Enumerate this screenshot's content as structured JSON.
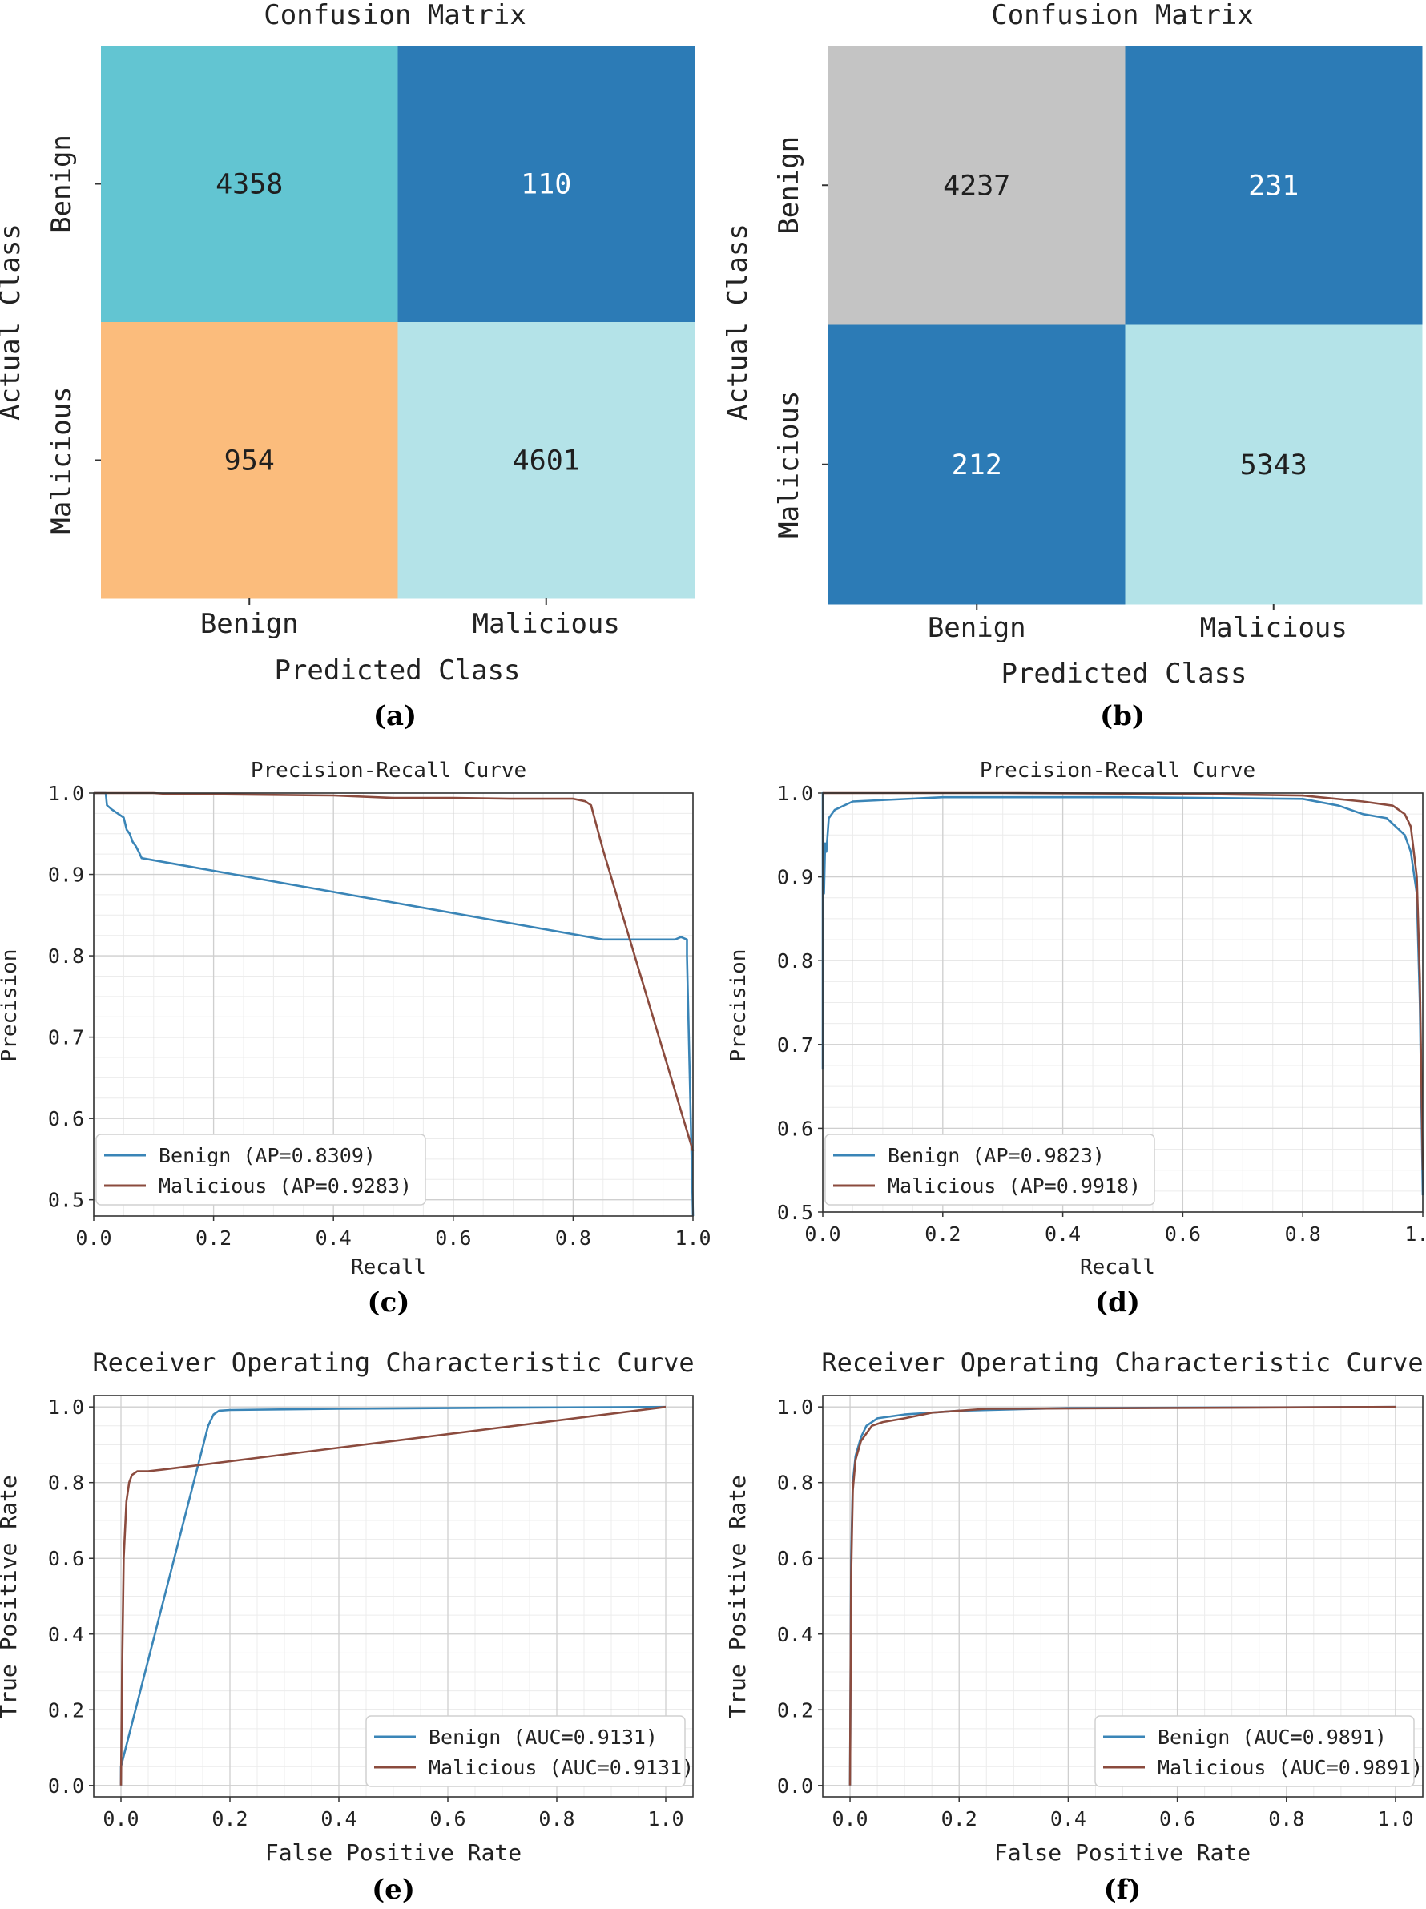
{
  "panels": [
    {
      "id": "a",
      "caption": "(a)",
      "chart_data": {
        "type": "heatmap",
        "title": "Confusion Matrix",
        "xlabel": "Predicted Class",
        "ylabel": "Actual Class",
        "x_categories": [
          "Benign",
          "Malicious"
        ],
        "y_categories": [
          "Benign",
          "Malicious"
        ],
        "values": [
          [
            4358,
            110
          ],
          [
            954,
            4601
          ]
        ],
        "cell_colors": [
          [
            "#62c5d2",
            "#2c7bb6"
          ],
          [
            "#fbbc7c",
            "#b4e3e8"
          ]
        ],
        "text_colors": [
          [
            "#1f1f1f",
            "#ffffff"
          ],
          [
            "#1f1f1f",
            "#1f1f1f"
          ]
        ]
      }
    },
    {
      "id": "b",
      "caption": "(b)",
      "chart_data": {
        "type": "heatmap",
        "title": "Confusion Matrix",
        "xlabel": "Predicted Class",
        "ylabel": "Actual Class",
        "x_categories": [
          "Benign",
          "Malicious"
        ],
        "y_categories": [
          "Benign",
          "Malicious"
        ],
        "values": [
          [
            4237,
            231
          ],
          [
            212,
            5343
          ]
        ],
        "cell_colors": [
          [
            "#c4c4c4",
            "#2c7bb6"
          ],
          [
            "#2c7bb6",
            "#b4e3e8"
          ]
        ],
        "text_colors": [
          [
            "#1f1f1f",
            "#ffffff"
          ],
          [
            "#ffffff",
            "#1f1f1f"
          ]
        ]
      }
    },
    {
      "id": "c",
      "caption": "(c)",
      "chart_data": {
        "type": "line",
        "title": "Precision-Recall Curve",
        "xlabel": "Recall",
        "ylabel": "Precision",
        "xlim": [
          0.0,
          1.0
        ],
        "ylim": [
          0.48,
          1.0
        ],
        "xticks": [
          0.0,
          0.2,
          0.4,
          0.6,
          0.8,
          1.0
        ],
        "yticks": [
          0.5,
          0.6,
          0.7,
          0.8,
          0.9,
          1.0
        ],
        "grid": true,
        "legend": "lower-left",
        "series": [
          {
            "name": "Benign (AP=0.8309)",
            "color": "#3a85b7",
            "x": [
              0.0,
              0.02,
              0.022,
              0.03,
              0.04,
              0.05,
              0.055,
              0.06,
              0.065,
              0.07,
              0.075,
              0.08,
              0.85,
              0.9,
              0.95,
              0.97,
              0.98,
              0.99,
              0.99,
              1.0
            ],
            "y": [
              1.0,
              1.0,
              0.985,
              0.98,
              0.975,
              0.97,
              0.955,
              0.95,
              0.94,
              0.935,
              0.928,
              0.92,
              0.82,
              0.82,
              0.82,
              0.82,
              0.823,
              0.82,
              0.8,
              0.48
            ]
          },
          {
            "name": "Malicious (AP=0.9283)",
            "color": "#8b4b3e",
            "x": [
              0.0,
              0.1,
              0.12,
              0.4,
              0.5,
              0.6,
              0.7,
              0.8,
              0.82,
              0.83,
              0.85,
              1.0
            ],
            "y": [
              1.0,
              1.0,
              0.999,
              0.997,
              0.994,
              0.994,
              0.993,
              0.993,
              0.99,
              0.985,
              0.93,
              0.56
            ]
          }
        ]
      }
    },
    {
      "id": "d",
      "caption": "(d)",
      "chart_data": {
        "type": "line",
        "title": "Precision-Recall Curve",
        "xlabel": "Recall",
        "ylabel": "Precision",
        "xlim": [
          0.0,
          1.0
        ],
        "ylim": [
          0.5,
          1.0
        ],
        "xticks": [
          0.0,
          0.2,
          0.4,
          0.6,
          0.8,
          1.0
        ],
        "yticks": [
          0.5,
          0.6,
          0.7,
          0.8,
          0.9,
          1.0
        ],
        "grid": true,
        "legend": "lower-left",
        "series": [
          {
            "name": "Benign (AP=0.9823)",
            "color": "#3a85b7",
            "x": [
              0.0,
              0.0,
              0.002,
              0.004,
              0.006,
              0.01,
              0.02,
              0.05,
              0.2,
              0.5,
              0.8,
              0.86,
              0.9,
              0.94,
              0.97,
              0.98,
              0.99,
              0.995,
              1.0
            ],
            "y": [
              0.67,
              1.0,
              0.88,
              0.94,
              0.93,
              0.97,
              0.98,
              0.99,
              0.995,
              0.995,
              0.993,
              0.985,
              0.975,
              0.97,
              0.95,
              0.93,
              0.88,
              0.75,
              0.52
            ]
          },
          {
            "name": "Malicious (AP=0.9918)",
            "color": "#8b4b3e",
            "x": [
              0.0,
              0.3,
              0.6,
              0.8,
              0.9,
              0.95,
              0.97,
              0.98,
              0.99,
              0.995,
              1.0
            ],
            "y": [
              1.0,
              1.0,
              0.999,
              0.997,
              0.99,
              0.985,
              0.975,
              0.96,
              0.9,
              0.78,
              0.55
            ]
          }
        ]
      }
    },
    {
      "id": "e",
      "caption": "(e)",
      "chart_data": {
        "type": "line",
        "title": "Receiver Operating Characteristic Curve",
        "xlabel": "False Positive Rate",
        "ylabel": "True Positive Rate",
        "xlim": [
          -0.05,
          1.05
        ],
        "ylim": [
          -0.03,
          1.03
        ],
        "xticks": [
          0.0,
          0.2,
          0.4,
          0.6,
          0.8,
          1.0
        ],
        "yticks": [
          0.0,
          0.2,
          0.4,
          0.6,
          0.8,
          1.0
        ],
        "grid": true,
        "legend": "lower-right",
        "series": [
          {
            "name": "Benign (AUC=0.9131)",
            "color": "#3a85b7",
            "x": [
              0.0,
              0.0,
              0.16,
              0.17,
              0.18,
              0.2,
              0.4,
              0.7,
              1.0
            ],
            "y": [
              0.0,
              0.05,
              0.95,
              0.98,
              0.99,
              0.992,
              0.995,
              0.998,
              1.0
            ]
          },
          {
            "name": "Malicious (AUC=0.9131)",
            "color": "#8b4b3e",
            "x": [
              0.0,
              0.002,
              0.005,
              0.01,
              0.015,
              0.02,
              0.03,
              0.05,
              0.08,
              0.5,
              1.0
            ],
            "y": [
              0.0,
              0.3,
              0.6,
              0.75,
              0.8,
              0.82,
              0.83,
              0.83,
              0.835,
              0.91,
              1.0
            ]
          }
        ]
      }
    },
    {
      "id": "f",
      "caption": "(f)",
      "chart_data": {
        "type": "line",
        "title": "Receiver Operating Characteristic Curve",
        "xlabel": "False Positive Rate",
        "ylabel": "True Positive Rate",
        "xlim": [
          -0.05,
          1.05
        ],
        "ylim": [
          -0.03,
          1.03
        ],
        "xticks": [
          0.0,
          0.2,
          0.4,
          0.6,
          0.8,
          1.0
        ],
        "yticks": [
          0.0,
          0.2,
          0.4,
          0.6,
          0.8,
          1.0
        ],
        "grid": true,
        "legend": "lower-right",
        "series": [
          {
            "name": "Benign (AUC=0.9891)",
            "color": "#3a85b7",
            "x": [
              0.0,
              0.002,
              0.005,
              0.01,
              0.02,
              0.03,
              0.05,
              0.1,
              0.2,
              0.4,
              1.0
            ],
            "y": [
              0.0,
              0.6,
              0.8,
              0.87,
              0.92,
              0.95,
              0.97,
              0.98,
              0.99,
              0.997,
              1.0
            ]
          },
          {
            "name": "Malicious (AUC=0.9891)",
            "color": "#8b4b3e",
            "x": [
              0.0,
              0.002,
              0.005,
              0.01,
              0.02,
              0.04,
              0.06,
              0.1,
              0.15,
              0.25,
              1.0
            ],
            "y": [
              0.0,
              0.55,
              0.78,
              0.86,
              0.91,
              0.95,
              0.96,
              0.97,
              0.985,
              0.995,
              1.0
            ]
          }
        ]
      }
    }
  ]
}
